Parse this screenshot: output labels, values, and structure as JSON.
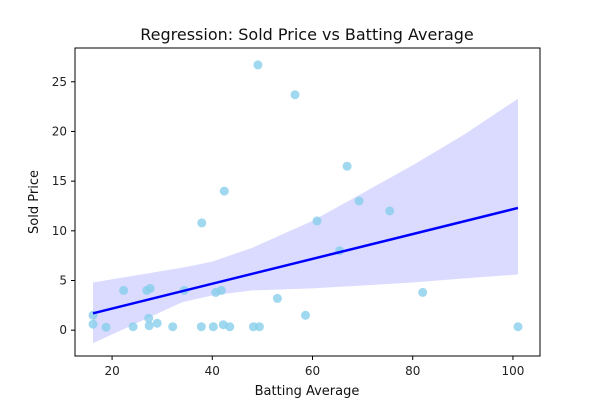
{
  "chart_data": {
    "type": "scatter",
    "title": "Regression: Sold Price vs Batting Average",
    "xlabel": "Batting Average",
    "ylabel": "Sold Price",
    "xlim": [
      12.6,
      105.4
    ],
    "ylim": [
      -2.6,
      28.4
    ],
    "xticks": [
      20,
      40,
      60,
      80,
      100
    ],
    "yticks": [
      0,
      5,
      10,
      15,
      20,
      25
    ],
    "grid": false,
    "colors": {
      "points": "#87ceeb",
      "regression_line": "#0000ff",
      "confidence_band": "#d9d9ff"
    },
    "points": [
      {
        "x": 16.2,
        "y": 1.5
      },
      {
        "x": 16.2,
        "y": 0.6
      },
      {
        "x": 18.8,
        "y": 0.3
      },
      {
        "x": 22.3,
        "y": 4.0
      },
      {
        "x": 24.2,
        "y": 0.35
      },
      {
        "x": 26.9,
        "y": 4.0
      },
      {
        "x": 27.3,
        "y": 1.2
      },
      {
        "x": 27.4,
        "y": 0.45
      },
      {
        "x": 27.6,
        "y": 4.2
      },
      {
        "x": 29.0,
        "y": 0.7
      },
      {
        "x": 32.1,
        "y": 0.35
      },
      {
        "x": 34.4,
        "y": 4.0
      },
      {
        "x": 37.8,
        "y": 0.35
      },
      {
        "x": 37.9,
        "y": 10.8
      },
      {
        "x": 40.2,
        "y": 0.35
      },
      {
        "x": 40.7,
        "y": 3.8
      },
      {
        "x": 41.8,
        "y": 4.0
      },
      {
        "x": 42.2,
        "y": 0.55
      },
      {
        "x": 42.4,
        "y": 14.0
      },
      {
        "x": 43.5,
        "y": 0.35
      },
      {
        "x": 48.2,
        "y": 0.35
      },
      {
        "x": 49.1,
        "y": 26.7
      },
      {
        "x": 49.4,
        "y": 0.35
      },
      {
        "x": 53.0,
        "y": 3.2
      },
      {
        "x": 56.5,
        "y": 23.7
      },
      {
        "x": 58.6,
        "y": 1.5
      },
      {
        "x": 60.9,
        "y": 11.0
      },
      {
        "x": 65.4,
        "y": 8.0
      },
      {
        "x": 66.9,
        "y": 16.5
      },
      {
        "x": 69.3,
        "y": 13.0
      },
      {
        "x": 75.4,
        "y": 12.0
      },
      {
        "x": 82.0,
        "y": 3.8
      },
      {
        "x": 101.0,
        "y": 0.35
      }
    ],
    "regression": {
      "x": [
        16.2,
        101.0
      ],
      "y": [
        1.7,
        12.3
      ]
    },
    "confidence_band": {
      "x": [
        16.2,
        34.0,
        40.0,
        48.0,
        60.0,
        70.0,
        80.0,
        90.0,
        101.0
      ],
      "lower": [
        -1.3,
        2.8,
        3.5,
        4.0,
        4.2,
        4.5,
        4.8,
        5.2,
        5.6
      ],
      "upper": [
        4.8,
        6.3,
        6.9,
        8.3,
        11.0,
        13.8,
        16.6,
        19.6,
        23.3
      ]
    }
  }
}
